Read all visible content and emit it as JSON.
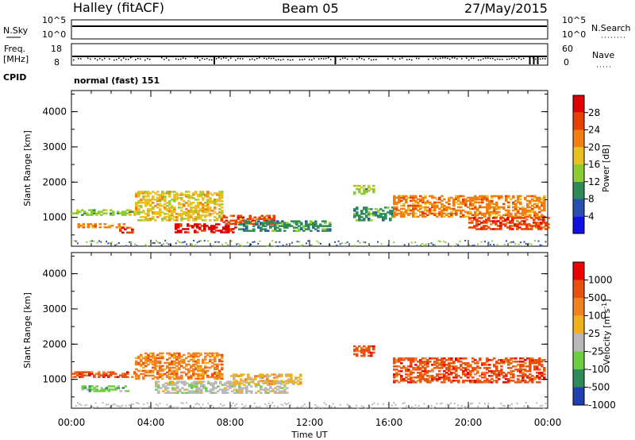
{
  "header": {
    "station": "Halley (fitACF)",
    "beam": "Beam 05",
    "date": "27/May/2015"
  },
  "strip_labels": {
    "nsky": "N.Sky",
    "nsky_top": "10^5",
    "nsky_bottom": "10^0",
    "nsearch": "N.Search",
    "nsearch_top": "10^5",
    "nsearch_bottom": "10^0",
    "freq_line1": "Freq.",
    "freq_line2": "[MHz]",
    "freq_top": "18",
    "freq_bottom": "8",
    "nave": "Nave",
    "nave_top": "60",
    "nave_bottom": "0",
    "cpid": "CPID",
    "cpid_value": "normal (fast) 151"
  },
  "axes": {
    "y_label": "Slant Range [km]",
    "x_label": "Time UT",
    "y_ticks": [
      "1000",
      "2000",
      "3000",
      "4000"
    ],
    "x_ticks": [
      "00:00",
      "04:00",
      "08:00",
      "12:00",
      "16:00",
      "20:00",
      "00:00"
    ]
  },
  "power_scale": {
    "label": "Power [dB]",
    "ticks": [
      "4",
      "8",
      "12",
      "16",
      "20",
      "24",
      "28"
    ],
    "colors": [
      "#1010e0",
      "#2850b0",
      "#2e8b57",
      "#8ccc33",
      "#e8c020",
      "#f07f10",
      "#e84000",
      "#dd0000"
    ]
  },
  "velocity_scale": {
    "label": "Velocity [m s",
    "label_sup": "-1",
    "label_end": "]",
    "ticks": [
      "1000",
      "500",
      "100",
      "25",
      "-25",
      "-100",
      "-500",
      "-1000"
    ],
    "colors": [
      "#2040b0",
      "#2e8b57",
      "#6ccf40",
      "#b8b8b8",
      "#f0b020",
      "#f08020",
      "#e85010",
      "#ee0000"
    ]
  },
  "chart_data": {
    "type": "heatmap",
    "x_range_hours": [
      0,
      24
    ],
    "y_range_km": [
      180,
      4600
    ],
    "power_bands": [
      {
        "t0": 0.0,
        "t1": 3.2,
        "r0": 1050,
        "r1": 1200,
        "level": "12"
      },
      {
        "t0": 0.3,
        "t1": 2.6,
        "r0": 700,
        "r1": 820,
        "level": "20"
      },
      {
        "t0": 2.4,
        "t1": 3.2,
        "r0": 550,
        "r1": 700,
        "level": "24"
      },
      {
        "t0": 3.2,
        "t1": 7.6,
        "r0": 900,
        "r1": 1750,
        "level": "16"
      },
      {
        "t0": 5.2,
        "t1": 8.3,
        "r0": 560,
        "r1": 800,
        "level": "28"
      },
      {
        "t0": 7.5,
        "t1": 10.2,
        "r0": 800,
        "r1": 1050,
        "level": "24"
      },
      {
        "t0": 8.4,
        "t1": 13.0,
        "r0": 600,
        "r1": 900,
        "level": "8"
      },
      {
        "t0": 14.2,
        "t1": 15.2,
        "r0": 1650,
        "r1": 1900,
        "level": "12"
      },
      {
        "t0": 14.2,
        "t1": 16.2,
        "r0": 900,
        "r1": 1300,
        "level": "8"
      },
      {
        "t0": 16.2,
        "t1": 23.8,
        "r0": 1000,
        "r1": 1600,
        "level": "20"
      },
      {
        "t0": 20.0,
        "t1": 24.0,
        "r0": 650,
        "r1": 1000,
        "level": "24"
      }
    ],
    "velocity_bands": [
      {
        "t0": 0.0,
        "t1": 3.2,
        "r0": 1050,
        "r1": 1200,
        "level": "-500"
      },
      {
        "t0": 0.5,
        "t1": 2.8,
        "r0": 650,
        "r1": 800,
        "level": "100"
      },
      {
        "t0": 3.2,
        "t1": 7.6,
        "r0": 1000,
        "r1": 1750,
        "level": "-100"
      },
      {
        "t0": 4.2,
        "t1": 10.8,
        "r0": 600,
        "r1": 950,
        "level": "25"
      },
      {
        "t0": 8.0,
        "t1": 11.5,
        "r0": 850,
        "r1": 1150,
        "level": "-25"
      },
      {
        "t0": 14.2,
        "t1": 15.2,
        "r0": 1650,
        "r1": 1950,
        "level": "-500"
      },
      {
        "t0": 16.2,
        "t1": 23.8,
        "r0": 900,
        "r1": 1600,
        "level": "-500"
      }
    ]
  }
}
